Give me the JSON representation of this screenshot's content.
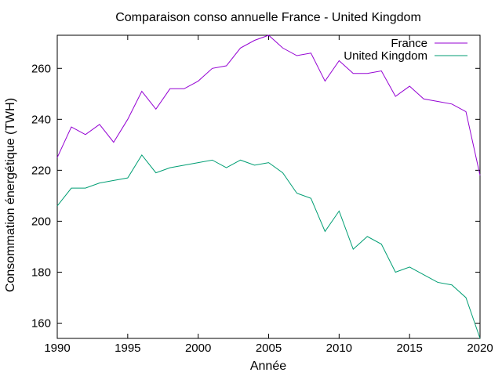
{
  "chart_data": {
    "type": "line",
    "title": "Comparaison conso annuelle France - United Kingdom",
    "xlabel": "Année",
    "ylabel": "Consommation énergétique (TWH)",
    "xlim": [
      1990,
      2020
    ],
    "ylim": [
      154,
      273
    ],
    "xticks": [
      1990,
      1995,
      2000,
      2005,
      2010,
      2015,
      2020
    ],
    "yticks": [
      160,
      180,
      200,
      220,
      240,
      260
    ],
    "grid": false,
    "legend_position": "top-right",
    "x": [
      1990,
      1991,
      1992,
      1993,
      1994,
      1995,
      1996,
      1997,
      1998,
      1999,
      2000,
      2001,
      2002,
      2003,
      2004,
      2005,
      2006,
      2007,
      2008,
      2009,
      2010,
      2011,
      2012,
      2013,
      2014,
      2015,
      2016,
      2017,
      2018,
      2019,
      2020
    ],
    "series": [
      {
        "name": "France",
        "color": "#9400d3",
        "values": [
          225,
          237,
          234,
          238,
          231,
          240,
          251,
          244,
          252,
          252,
          255,
          260,
          261,
          268,
          271,
          273,
          268,
          265,
          266,
          255,
          263,
          258,
          258,
          259,
          249,
          253,
          248,
          247,
          246,
          243,
          218
        ]
      },
      {
        "name": "United Kingdom",
        "color": "#009e73",
        "values": [
          206,
          213,
          213,
          215,
          216,
          217,
          226,
          219,
          221,
          222,
          223,
          224,
          221,
          224,
          222,
          223,
          219,
          211,
          209,
          196,
          204,
          189,
          194,
          191,
          180,
          182,
          179,
          176,
          175,
          170,
          154
        ]
      }
    ]
  }
}
